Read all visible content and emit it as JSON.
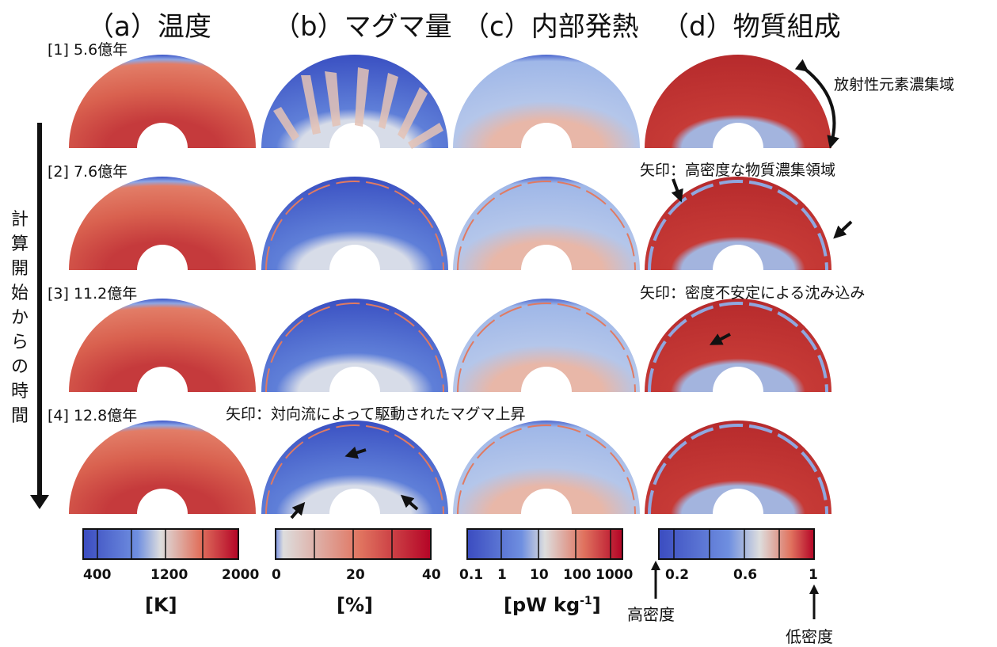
{
  "columns": [
    {
      "label": "（a）温度"
    },
    {
      "label": "（b）マグマ量"
    },
    {
      "label": "（c）内部発熱"
    },
    {
      "label": "（d）物質組成"
    }
  ],
  "rows": [
    {
      "label": "[1] 5.6億年"
    },
    {
      "label": "[2] 7.6億年"
    },
    {
      "label": "[3] 11.2億年"
    },
    {
      "label": "[4] 12.8億年"
    }
  ],
  "vertical_axis_label": [
    "計",
    "算",
    "開",
    "始",
    "か",
    "ら",
    "の",
    "時",
    "間"
  ],
  "annotations": {
    "radioactive_region": "放射性元素濃集域",
    "row2_arrows": "矢印：高密度な物質濃集領域",
    "row3_arrows": "矢印：密度不安定による沈み込み",
    "row4_arrows": "矢印：対向流によって駆動されたマグマ上昇"
  },
  "colorbars": [
    {
      "name": "temperature",
      "ticks": [
        "400",
        "1200",
        "2000"
      ],
      "unit": "[K]"
    },
    {
      "name": "magma",
      "ticks": [
        "0",
        "20",
        "40"
      ],
      "unit": "[%]"
    },
    {
      "name": "heating",
      "ticks": [
        "0.1",
        "1",
        "10",
        "100",
        "1000"
      ],
      "unit_main": "[pW kg",
      "unit_sup": "-1",
      "unit_end": "]"
    },
    {
      "name": "composition",
      "ticks": [
        "0.2",
        "0.6",
        "1"
      ],
      "high_density": "高密度",
      "low_density": "低密度"
    }
  ],
  "colors": {
    "deep_blue": "#3b4cc0",
    "mid_blue": "#6f8fe0",
    "light": "#dddddd",
    "mid_red": "#e0735f",
    "deep_red": "#b40426"
  }
}
